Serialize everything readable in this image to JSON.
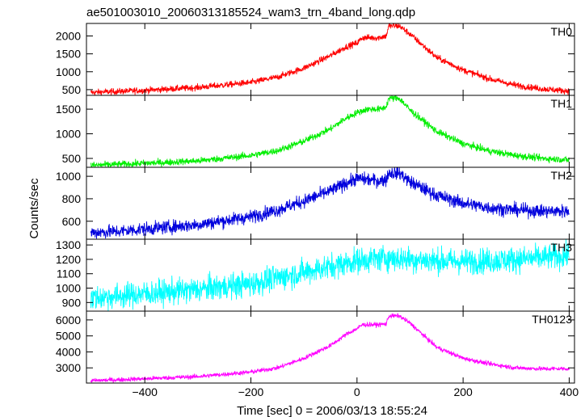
{
  "chart_data": {
    "type": "line",
    "title": "ae501003010_20060313185524_wam3_trn_4band_long.qdp",
    "xlabel": "Time [sec] 0 = 2006/03/13 18:55:24",
    "ylabel": "Counts/sec",
    "xlim": [
      -510,
      410
    ],
    "xticks": [
      -400,
      -200,
      0,
      200,
      400
    ],
    "xtick_labels": [
      "−400",
      "−200",
      "0",
      "200",
      "400"
    ],
    "panels": [
      {
        "name": "TH0",
        "color": "#ff0000",
        "ylim": [
          340,
          2350
        ],
        "yticks": [
          500,
          1000,
          1500,
          2000
        ],
        "noise": 45,
        "points": [
          [
            -500,
            420
          ],
          [
            -450,
            450
          ],
          [
            -400,
            480
          ],
          [
            -300,
            560
          ],
          [
            -200,
            700
          ],
          [
            -150,
            850
          ],
          [
            -100,
            1100
          ],
          [
            -50,
            1450
          ],
          [
            -20,
            1700
          ],
          [
            0,
            1800
          ],
          [
            10,
            1950
          ],
          [
            40,
            1950
          ],
          [
            55,
            2000
          ],
          [
            60,
            2280
          ],
          [
            80,
            2280
          ],
          [
            100,
            2050
          ],
          [
            150,
            1400
          ],
          [
            200,
            1050
          ],
          [
            250,
            800
          ],
          [
            300,
            620
          ],
          [
            350,
            520
          ],
          [
            400,
            460
          ]
        ]
      },
      {
        "name": "TH1",
        "color": "#00ee00",
        "ylim": [
          320,
          1780
        ],
        "yticks": [
          500,
          1000,
          1500
        ],
        "noise": 35,
        "points": [
          [
            -500,
            360
          ],
          [
            -450,
            380
          ],
          [
            -400,
            400
          ],
          [
            -300,
            450
          ],
          [
            -200,
            560
          ],
          [
            -150,
            660
          ],
          [
            -100,
            850
          ],
          [
            -50,
            1100
          ],
          [
            -20,
            1320
          ],
          [
            0,
            1430
          ],
          [
            20,
            1500
          ],
          [
            45,
            1500
          ],
          [
            55,
            1550
          ],
          [
            60,
            1720
          ],
          [
            80,
            1720
          ],
          [
            100,
            1480
          ],
          [
            150,
            1050
          ],
          [
            200,
            800
          ],
          [
            250,
            650
          ],
          [
            300,
            560
          ],
          [
            350,
            500
          ],
          [
            400,
            470
          ]
        ]
      },
      {
        "name": "TH2",
        "color": "#0000dd",
        "ylim": [
          440,
          1080
        ],
        "yticks": [
          600,
          800,
          1000
        ],
        "noise": 30,
        "points": [
          [
            -500,
            500
          ],
          [
            -450,
            510
          ],
          [
            -400,
            530
          ],
          [
            -300,
            570
          ],
          [
            -200,
            640
          ],
          [
            -150,
            700
          ],
          [
            -100,
            780
          ],
          [
            -50,
            870
          ],
          [
            -20,
            940
          ],
          [
            0,
            980
          ],
          [
            40,
            960
          ],
          [
            55,
            970
          ],
          [
            60,
            1030
          ],
          [
            80,
            1030
          ],
          [
            100,
            950
          ],
          [
            150,
            830
          ],
          [
            200,
            760
          ],
          [
            250,
            720
          ],
          [
            300,
            700
          ],
          [
            350,
            690
          ],
          [
            400,
            690
          ]
        ]
      },
      {
        "name": "TH3",
        "color": "#00ffff",
        "ylim": [
          840,
          1340
        ],
        "yticks": [
          900,
          1000,
          1100,
          1200,
          1300
        ],
        "noise": 45,
        "points": [
          [
            -500,
            930
          ],
          [
            -450,
            945
          ],
          [
            -400,
            960
          ],
          [
            -300,
            990
          ],
          [
            -200,
            1030
          ],
          [
            -150,
            1070
          ],
          [
            -100,
            1110
          ],
          [
            -50,
            1150
          ],
          [
            0,
            1190
          ],
          [
            50,
            1210
          ],
          [
            100,
            1200
          ],
          [
            150,
            1190
          ],
          [
            200,
            1185
          ],
          [
            250,
            1190
          ],
          [
            300,
            1200
          ],
          [
            350,
            1210
          ],
          [
            400,
            1230
          ]
        ]
      },
      {
        "name": "TH0123",
        "color": "#ff00ff",
        "ylim": [
          2050,
          6550
        ],
        "yticks": [
          3000,
          4000,
          5000,
          6000
        ],
        "noise": 70,
        "points": [
          [
            -500,
            2200
          ],
          [
            -450,
            2260
          ],
          [
            -400,
            2320
          ],
          [
            -300,
            2460
          ],
          [
            -200,
            2740
          ],
          [
            -150,
            3000
          ],
          [
            -100,
            3600
          ],
          [
            -50,
            4400
          ],
          [
            -20,
            5100
          ],
          [
            0,
            5450
          ],
          [
            10,
            5700
          ],
          [
            40,
            5700
          ],
          [
            55,
            5750
          ],
          [
            60,
            6250
          ],
          [
            80,
            6250
          ],
          [
            100,
            5800
          ],
          [
            150,
            4300
          ],
          [
            200,
            3600
          ],
          [
            250,
            3250
          ],
          [
            300,
            3000
          ],
          [
            350,
            2940
          ],
          [
            400,
            2950
          ]
        ]
      }
    ]
  }
}
